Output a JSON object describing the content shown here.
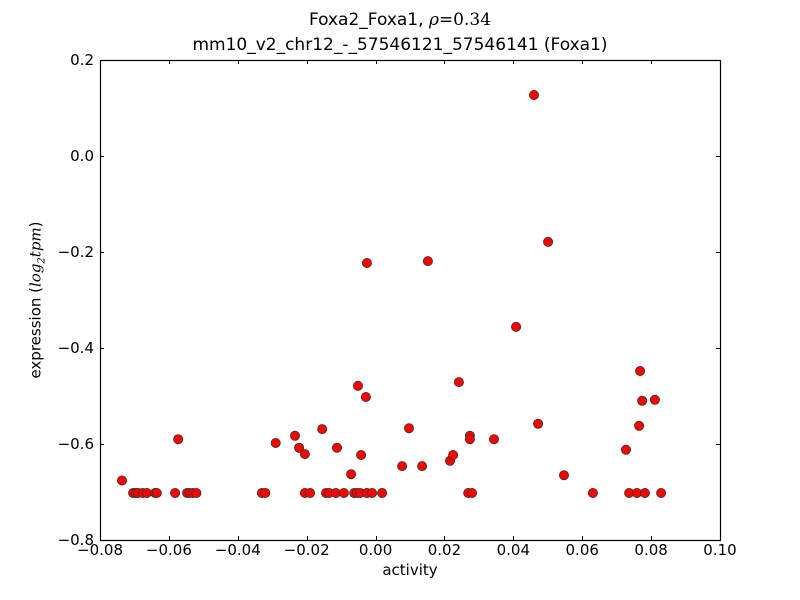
{
  "chart_data": {
    "type": "scatter",
    "title": "Foxa2_Foxa1, ρ=0.34",
    "title_parts": {
      "name": "Foxa2_Foxa1, ",
      "rho_symbol": "ρ",
      "rho_eq": "=0.34"
    },
    "subtitle": "mm10_v2_chr12_-_57546121_57546141 (Foxa1)",
    "xlabel": "activity",
    "ylabel": "expression (log2tpm)",
    "ylabel_parts": {
      "text": "expression (",
      "math_base": "log",
      "math_sub": "2",
      "math_rest": "tpm",
      "close": ")"
    },
    "xlim": [
      -0.08,
      0.1
    ],
    "ylim": [
      -0.8,
      0.2
    ],
    "xticks": [
      "−0.08",
      "−0.06",
      "−0.04",
      "−0.02",
      "0.00",
      "0.02",
      "0.04",
      "0.06",
      "0.08",
      "0.10"
    ],
    "xtick_values": [
      -0.08,
      -0.06,
      -0.04,
      -0.02,
      0.0,
      0.02,
      0.04,
      0.06,
      0.08,
      0.1
    ],
    "yticks": [
      "0.2",
      "0.0",
      "−0.2",
      "−0.4",
      "−0.6",
      "−0.8"
    ],
    "ytick_values": [
      0.2,
      0.0,
      -0.2,
      -0.4,
      -0.6,
      -0.8
    ],
    "grid": false,
    "legend": null,
    "marker_color": "#ff0000",
    "marker_edge": "#333333",
    "points": [
      {
        "x": -0.0736,
        "y": -0.676
      },
      {
        "x": -0.0704,
        "y": -0.702
      },
      {
        "x": -0.0696,
        "y": -0.702
      },
      {
        "x": -0.069,
        "y": -0.702
      },
      {
        "x": -0.0676,
        "y": -0.702
      },
      {
        "x": -0.0664,
        "y": -0.702
      },
      {
        "x": -0.064,
        "y": -0.702
      },
      {
        "x": -0.0635,
        "y": -0.702
      },
      {
        "x": -0.0582,
        "y": -0.702
      },
      {
        "x": -0.0573,
        "y": -0.59
      },
      {
        "x": -0.0547,
        "y": -0.702
      },
      {
        "x": -0.054,
        "y": -0.702
      },
      {
        "x": -0.053,
        "y": -0.702
      },
      {
        "x": -0.052,
        "y": -0.702
      },
      {
        "x": -0.033,
        "y": -0.702
      },
      {
        "x": -0.032,
        "y": -0.702
      },
      {
        "x": -0.029,
        "y": -0.598
      },
      {
        "x": -0.0234,
        "y": -0.583
      },
      {
        "x": -0.0222,
        "y": -0.608
      },
      {
        "x": -0.0205,
        "y": -0.621
      },
      {
        "x": -0.0205,
        "y": -0.702
      },
      {
        "x": -0.019,
        "y": -0.702
      },
      {
        "x": -0.0155,
        "y": -0.569
      },
      {
        "x": -0.0144,
        "y": -0.702
      },
      {
        "x": -0.0135,
        "y": -0.702
      },
      {
        "x": -0.0115,
        "y": -0.702
      },
      {
        "x": -0.0112,
        "y": -0.608
      },
      {
        "x": -0.0092,
        "y": -0.702
      },
      {
        "x": -0.0071,
        "y": -0.663
      },
      {
        "x": -0.0062,
        "y": -0.702
      },
      {
        "x": -0.0054,
        "y": -0.702
      },
      {
        "x": -0.0051,
        "y": -0.479
      },
      {
        "x": -0.0045,
        "y": -0.702
      },
      {
        "x": -0.0042,
        "y": -0.623
      },
      {
        "x": -0.0028,
        "y": -0.502
      },
      {
        "x": -0.0025,
        "y": -0.223
      },
      {
        "x": -0.0025,
        "y": -0.702
      },
      {
        "x": -0.001,
        "y": -0.702
      },
      {
        "x": 0.0019,
        "y": -0.702
      },
      {
        "x": 0.0077,
        "y": -0.646
      },
      {
        "x": 0.0097,
        "y": -0.567
      },
      {
        "x": 0.0135,
        "y": -0.646
      },
      {
        "x": 0.0152,
        "y": -0.219
      },
      {
        "x": 0.0216,
        "y": -0.635
      },
      {
        "x": 0.0225,
        "y": -0.623
      },
      {
        "x": 0.0242,
        "y": -0.471
      },
      {
        "x": 0.0269,
        "y": -0.702
      },
      {
        "x": 0.0274,
        "y": -0.583
      },
      {
        "x": 0.0274,
        "y": -0.59
      },
      {
        "x": 0.028,
        "y": -0.702
      },
      {
        "x": 0.0344,
        "y": -0.59
      },
      {
        "x": 0.0408,
        "y": -0.356
      },
      {
        "x": 0.046,
        "y": 0.127
      },
      {
        "x": 0.0472,
        "y": -0.558
      },
      {
        "x": 0.0501,
        "y": -0.179
      },
      {
        "x": 0.0547,
        "y": -0.665
      },
      {
        "x": 0.0631,
        "y": -0.702
      },
      {
        "x": 0.0727,
        "y": -0.612
      },
      {
        "x": 0.0736,
        "y": -0.702
      },
      {
        "x": 0.0759,
        "y": -0.702
      },
      {
        "x": 0.0765,
        "y": -0.562
      },
      {
        "x": 0.0768,
        "y": -0.448
      },
      {
        "x": 0.0774,
        "y": -0.51
      },
      {
        "x": 0.0782,
        "y": -0.702
      },
      {
        "x": 0.0811,
        "y": -0.508
      },
      {
        "x": 0.0829,
        "y": -0.702
      }
    ]
  }
}
